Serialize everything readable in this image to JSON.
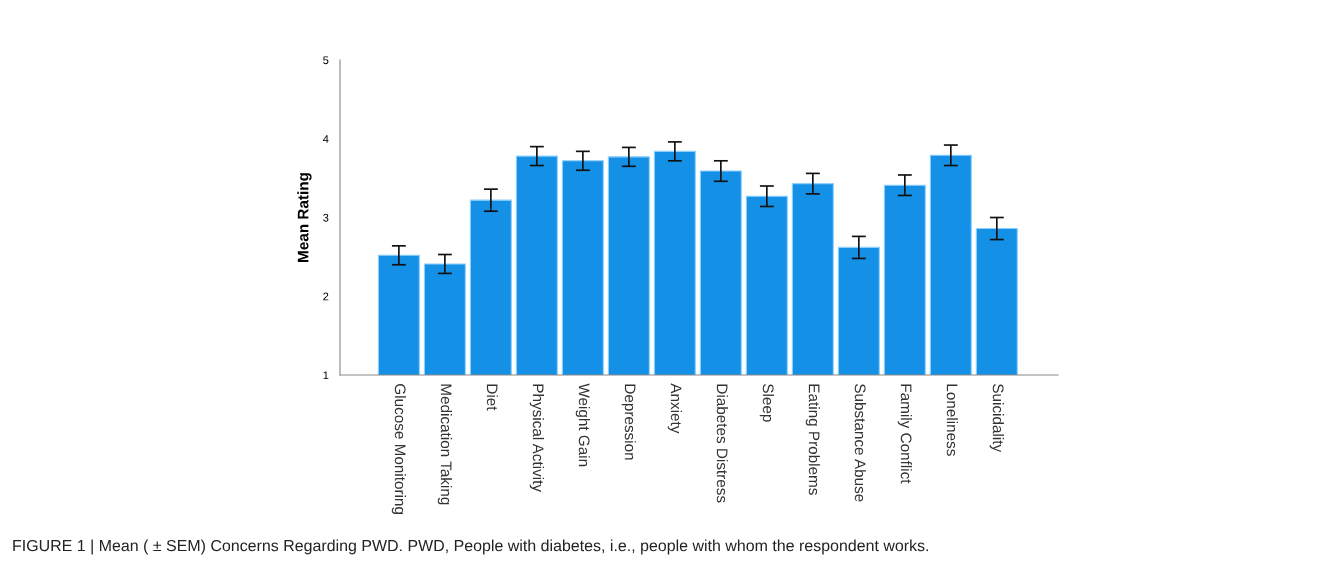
{
  "chart_data": {
    "type": "bar",
    "ylabel": "Mean Rating",
    "categories": [
      "Glucose Monitoring",
      "Medication Taking",
      "Diet",
      "Physical Activity",
      "Weight Gain",
      "Depression",
      "Anxiety",
      "Diabetes Distress",
      "Sleep",
      "Eating Problems",
      "Substance Abuse",
      "Family Conflict",
      "Loneliness",
      "Suicidality"
    ],
    "values": [
      2.52,
      2.41,
      3.22,
      3.78,
      3.72,
      3.77,
      3.84,
      3.59,
      3.27,
      3.43,
      2.62,
      3.41,
      3.79,
      2.86
    ],
    "errors": [
      0.12,
      0.12,
      0.14,
      0.12,
      0.12,
      0.12,
      0.12,
      0.13,
      0.13,
      0.13,
      0.14,
      0.13,
      0.13,
      0.14
    ],
    "color": "#1490e6",
    "ylim": [
      1,
      5
    ],
    "yticks": [
      1,
      2,
      3,
      4,
      5
    ],
    "grid": false,
    "annotations": [
      "FIGURE 1 | Mean ( ± SEM) Concerns Regarding PWD. PWD, People with diabetes, i.e., people with whom the respondent works."
    ]
  }
}
